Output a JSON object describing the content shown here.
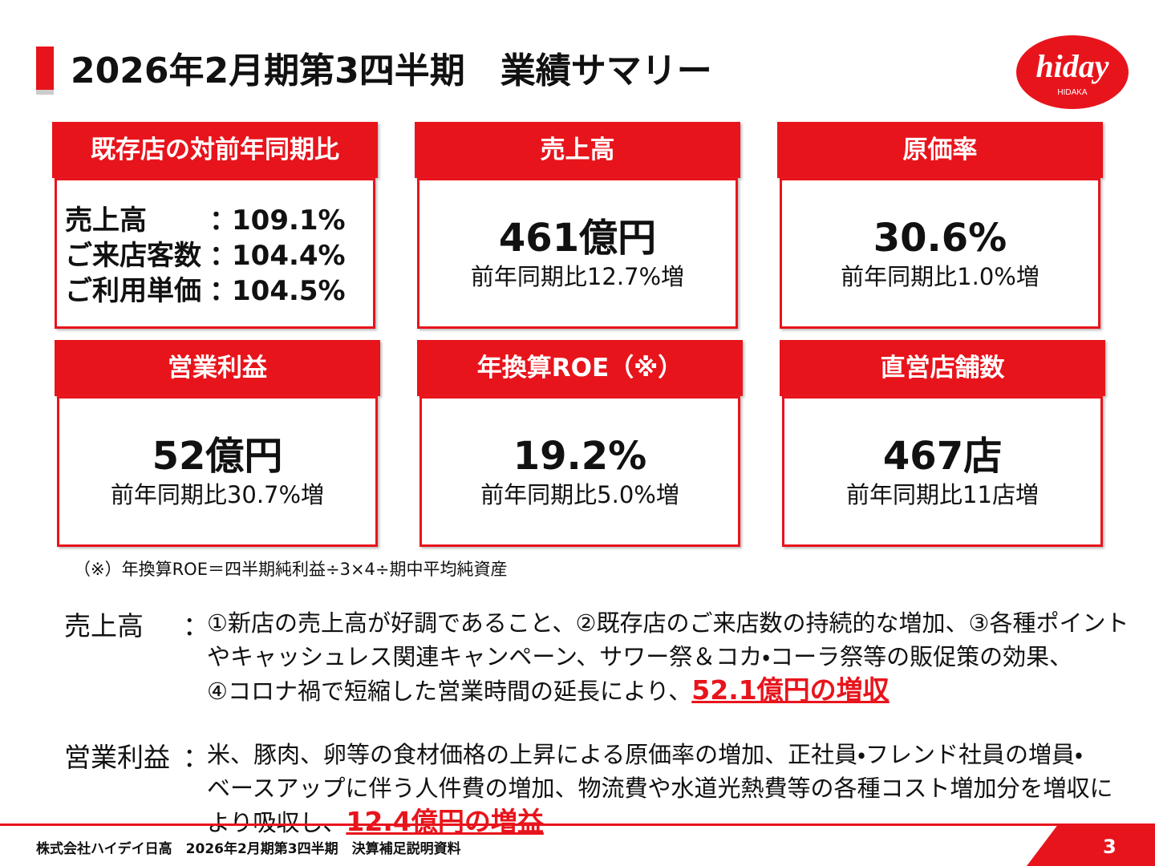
{
  "header": {
    "title": "2026年2月期第3四半期　業績サマリー",
    "logo": {
      "brand": "hiday",
      "sub": "HIDAKA"
    }
  },
  "cards": [
    {
      "header": "既存店の対前年同期比",
      "rows": [
        {
          "label": "売上高",
          "sep": "：",
          "value": "109.1%"
        },
        {
          "label": "ご来店客数",
          "sep": "：",
          "value": "104.4%"
        },
        {
          "label": "ご利用単価",
          "sep": "：",
          "value": "104.5%"
        }
      ]
    },
    {
      "header": "売上高",
      "main": "461億円",
      "sub": "前年同期比12.7%増"
    },
    {
      "header": "原価率",
      "main": "30.6%",
      "sub": "前年同期比1.0%増"
    },
    {
      "header": "営業利益",
      "main": "52億円",
      "sub": "前年同期比30.7%増"
    },
    {
      "header": "年換算ROE（※）",
      "main": "19.2%",
      "sub": "前年同期比5.0%増"
    },
    {
      "header": "直営店舗数",
      "main": "467店",
      "sub": "前年同期比11店増"
    }
  ],
  "note": "（※）年換算ROE＝四半期純利益÷3×4÷期中平均純資産",
  "explanations": [
    {
      "label": "売上高",
      "sep": "：",
      "lines": [
        "①新店の売上高が好調であること、②既存店のご来店数の持続的な増加、③各種ポイント",
        "やキャッシュレス関連キャンペーン、サワー祭＆コカ・コーラ祭等の販促策の効果、",
        "④コロナ禍で短縮した営業時間の延長により、"
      ],
      "highlight": "52.1億円の増収"
    },
    {
      "label": "営業利益",
      "sep": "：",
      "lines": [
        "米、豚肉、卵等の食材価格の上昇による原価率の増加、正社員・フレンド社員の増員・",
        "ベースアップに伴う人件費の増加、物流費や水道光熱費等の各種コスト増加分を増収に",
        "より吸収し、"
      ],
      "highlight": "12.4億円の増益"
    }
  ],
  "footer": {
    "text": "株式会社ハイデイ日高　2026年2月期第3四半期　決算補足説明資料",
    "page": "3"
  }
}
